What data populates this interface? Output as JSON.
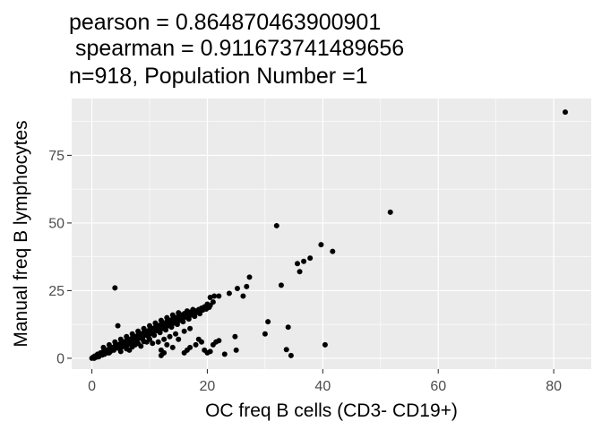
{
  "chart_data": {
    "type": "scatter",
    "title_lines": [
      "pearson = 0.864870463900901",
      " spearman = 0.911673741489656",
      "n=918, Population Number =1"
    ],
    "xlabel": "OC freq B cells (CD3- CD19+)",
    "ylabel": "Manual freq B lymphocytes",
    "xlim": [
      -3.5,
      86.5
    ],
    "ylim": [
      -4,
      96
    ],
    "x_ticks": [
      0,
      20,
      40,
      60,
      80
    ],
    "y_ticks": [
      0,
      25,
      50,
      75
    ],
    "grid": true,
    "panel_background": "#ebebeb",
    "grid_color": "#ffffff",
    "point_color": "#000000",
    "points": [
      [
        82,
        91
      ],
      [
        51.7,
        54
      ],
      [
        32,
        49
      ],
      [
        39.7,
        42
      ],
      [
        41.7,
        39.5
      ],
      [
        37.8,
        37
      ],
      [
        36.7,
        35.8
      ],
      [
        35.6,
        35
      ],
      [
        27.3,
        30
      ],
      [
        32.8,
        27
      ],
      [
        26.8,
        26.5
      ],
      [
        25.2,
        25.8
      ],
      [
        23.8,
        24
      ],
      [
        26.2,
        23
      ],
      [
        21.2,
        23
      ],
      [
        22,
        23
      ],
      [
        20.5,
        22.5
      ],
      [
        21,
        20.8
      ],
      [
        20,
        20
      ],
      [
        20.5,
        19.5
      ],
      [
        19.5,
        19
      ],
      [
        19,
        18.5
      ],
      [
        18.5,
        18
      ],
      [
        18,
        17.5
      ],
      [
        17.5,
        18
      ],
      [
        17,
        17
      ],
      [
        16.5,
        17.5
      ],
      [
        16,
        16.5
      ],
      [
        15.5,
        16
      ],
      [
        15,
        15.5
      ],
      [
        14.5,
        15
      ],
      [
        14,
        14.5
      ],
      [
        13.5,
        14
      ],
      [
        13,
        13.5
      ],
      [
        12.5,
        13
      ],
      [
        12,
        12.5
      ],
      [
        11.5,
        12
      ],
      [
        11,
        11.5
      ],
      [
        10.5,
        11
      ],
      [
        10,
        10.5
      ],
      [
        9.5,
        10
      ],
      [
        9,
        9.5
      ],
      [
        8.5,
        9
      ],
      [
        8,
        8.5
      ],
      [
        7.5,
        8
      ],
      [
        7,
        7.5
      ],
      [
        6.5,
        7
      ],
      [
        6,
        6.5
      ],
      [
        5.5,
        6
      ],
      [
        5,
        5.5
      ],
      [
        4.5,
        5
      ],
      [
        4,
        4.5
      ],
      [
        3.5,
        4
      ],
      [
        3,
        3.5
      ],
      [
        2.5,
        3
      ],
      [
        2,
        2.5
      ],
      [
        1.5,
        2
      ],
      [
        1,
        1.5
      ],
      [
        0.8,
        1
      ],
      [
        0.5,
        0.8
      ],
      [
        0.3,
        0.5
      ],
      [
        0.2,
        0.3
      ],
      [
        0.1,
        0.2
      ],
      [
        0,
        0
      ],
      [
        0.4,
        0
      ],
      [
        0.6,
        0.3
      ],
      [
        18.7,
        16.5
      ],
      [
        17.8,
        15.5
      ],
      [
        16.8,
        14.5
      ],
      [
        15.8,
        13.5
      ],
      [
        14.8,
        12.5
      ],
      [
        13.8,
        11.5
      ],
      [
        12.8,
        10.5
      ],
      [
        11.8,
        9.5
      ],
      [
        10.8,
        8.5
      ],
      [
        9.8,
        8
      ],
      [
        8.8,
        7
      ],
      [
        7.8,
        6.5
      ],
      [
        6.8,
        5.5
      ],
      [
        5.8,
        4.5
      ],
      [
        4.8,
        3.5
      ],
      [
        3.8,
        3
      ],
      [
        2.8,
        2
      ],
      [
        1.8,
        1.2
      ],
      [
        1.2,
        0.6
      ],
      [
        2.2,
        1.5
      ],
      [
        3.2,
        2.5
      ],
      [
        4.2,
        3.8
      ],
      [
        5.2,
        4.2
      ],
      [
        6.2,
        5
      ],
      [
        7.2,
        6
      ],
      [
        8.2,
        7.5
      ],
      [
        9.2,
        8.5
      ],
      [
        10.2,
        9.2
      ],
      [
        11.2,
        10.2
      ],
      [
        12.2,
        11
      ],
      [
        13.2,
        12
      ],
      [
        14.2,
        13
      ],
      [
        15.2,
        14
      ],
      [
        16.2,
        15.2
      ],
      [
        17.2,
        16
      ],
      [
        18.2,
        17
      ],
      [
        19.2,
        17.8
      ],
      [
        19.8,
        18.2
      ],
      [
        20.3,
        18.8
      ],
      [
        17.6,
        16.8
      ],
      [
        16.6,
        15.8
      ],
      [
        15.6,
        14.8
      ],
      [
        14.6,
        13.8
      ],
      [
        13.6,
        12.8
      ],
      [
        12.6,
        11.8
      ],
      [
        11.6,
        10.8
      ],
      [
        10.6,
        9.8
      ],
      [
        9.6,
        8.8
      ],
      [
        8.6,
        7.8
      ],
      [
        7.6,
        6.8
      ],
      [
        6.6,
        5.8
      ],
      [
        5.6,
        4.8
      ],
      [
        4.6,
        4
      ],
      [
        3.6,
        3.2
      ],
      [
        2.6,
        2.2
      ],
      [
        1.6,
        1.4
      ],
      [
        12,
        14
      ],
      [
        13,
        15
      ],
      [
        14,
        16
      ],
      [
        15,
        16.8
      ],
      [
        11,
        13
      ],
      [
        10,
        12
      ],
      [
        9,
        11
      ],
      [
        8,
        10
      ],
      [
        7,
        9
      ],
      [
        6,
        8
      ],
      [
        5,
        7
      ],
      [
        4,
        6
      ],
      [
        3,
        5
      ],
      [
        2,
        4
      ],
      [
        11.5,
        6
      ],
      [
        12.5,
        7
      ],
      [
        13,
        5
      ],
      [
        12,
        3
      ],
      [
        13.5,
        8
      ],
      [
        14.5,
        9
      ],
      [
        15,
        7
      ],
      [
        16,
        10
      ],
      [
        17,
        11
      ],
      [
        14,
        4
      ],
      [
        10.5,
        5.5
      ],
      [
        9.5,
        6
      ],
      [
        8.5,
        4.5
      ],
      [
        7.5,
        5
      ],
      [
        6.5,
        3
      ],
      [
        4,
        26
      ],
      [
        4.5,
        12
      ],
      [
        3,
        2
      ],
      [
        1,
        0.5
      ],
      [
        5,
        2.5
      ],
      [
        6,
        3.5
      ],
      [
        7,
        4.2
      ],
      [
        8,
        5.5
      ],
      [
        9,
        6.2
      ],
      [
        10,
        7
      ],
      [
        16,
        2
      ],
      [
        16.5,
        3
      ],
      [
        12,
        1
      ],
      [
        12.5,
        2
      ],
      [
        17,
        4
      ],
      [
        18,
        5
      ],
      [
        18.5,
        7
      ],
      [
        19,
        6
      ],
      [
        19.5,
        3
      ],
      [
        20,
        2
      ],
      [
        20.5,
        2.5
      ],
      [
        21,
        5
      ],
      [
        21.5,
        6
      ],
      [
        22,
        6.5
      ],
      [
        23,
        1.5
      ],
      [
        24.8,
        8
      ],
      [
        25,
        3
      ],
      [
        30.5,
        13.5
      ],
      [
        30,
        9
      ],
      [
        34,
        11.5
      ],
      [
        33.7,
        3.2
      ],
      [
        34.5,
        1
      ],
      [
        40.4,
        5
      ],
      [
        36,
        32
      ]
    ]
  }
}
